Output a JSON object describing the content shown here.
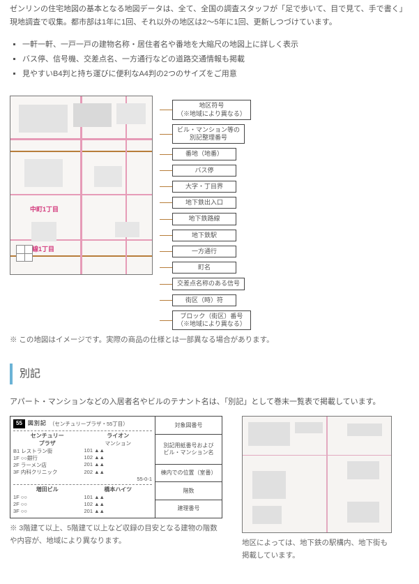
{
  "intro": {
    "paragraph": "ゼンリンの住宅地図の基本となる地図データは、全て、全国の調査スタッフが「足で歩いて、目で見て、手で書く」現地調査で収集。都市部は1年に1回、それ以外の地区は2～5年に1回、更新しつづけています。",
    "features": [
      "一軒一軒、一戸一戸の建物名称・居住者名や番地を大縮尺の地図上に詳しく表示",
      "バス停、信号機、交差点名、一方通行などの道路交通情報も掲載",
      "見やすいB4判と持ち運びに便利なA4判の2つのサイズをご用意"
    ]
  },
  "main_map": {
    "labels": {
      "chome_1": "中町1丁目",
      "chome_2": "無線1丁目"
    },
    "legend": [
      "地区符号\n（※地域により異なる）",
      "ビル・マンション等の\n別記整理番号",
      "番地（地番）",
      "バス停",
      "大字・丁目界",
      "地下鉄出入口",
      "地下鉄路線",
      "地下鉄駅",
      "一方通行",
      "町名",
      "交差点名称のある信号",
      "街区（時）符",
      "ブロック（街区）番号\n（※地域により異なる）"
    ],
    "note": "※ この地図はイメージです。実際の商品の仕様とは一部異なる場合があります。"
  },
  "bekki": {
    "heading": "別記",
    "intro": "アパート・マンションなどの入居者名やビルのテナント名は、「別記」として巻末一覧表で掲載しています。",
    "card": {
      "header_num": "55",
      "header_title": "図別記",
      "sub": "（センチュリープラザ・55丁目）",
      "block1_title": "センチュリー\nプラザ",
      "block1_rooms": [
        "B1 レストラン街",
        "1F ○○銀行",
        "2F ラーメン店",
        "3F 内科クリニック"
      ],
      "block2_title": "ライオン",
      "block2_sub": "マンション",
      "block2_rooms": [
        "101 ▲▲",
        "102 ▲▲",
        "201 ▲▲",
        "202 ▲▲"
      ],
      "block3_title": "増田ビル",
      "block3_rooms": [
        "1F ○○",
        "2F ○○",
        "3F ○○"
      ],
      "block3b_title": "橋本ハイツ",
      "block3b_rooms": [
        "101 ▲▲",
        "102 ▲▲",
        "201 ▲▲"
      ],
      "right_col": "55-0-1"
    },
    "legend_boxes": [
      "対象図番号",
      "別記用紙番号および\nビル・マンション名",
      "棟内での位置（室番）",
      "階数",
      "建理番号"
    ],
    "note": "※ 3階建て以上、5階建て以上など収録の目安となる建物の階数や内容が、地域により異なります。",
    "subway_note": "地区によっては、地下鉄の駅構内、地下街も掲載しています。"
  },
  "colors": {
    "accent": "#6bb3d6",
    "road_pink": "#e69bb7",
    "road_brown": "#b77d3a",
    "text": "#555555"
  }
}
